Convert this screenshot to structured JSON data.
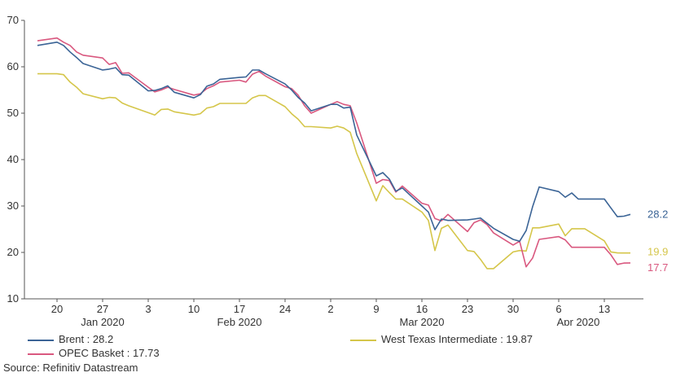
{
  "chart_data": {
    "type": "line",
    "title": "",
    "xlabel": "",
    "ylabel": "",
    "ylim": [
      10,
      70
    ],
    "yticks": [
      10,
      20,
      30,
      40,
      50,
      60,
      70
    ],
    "grid": false,
    "legend_position": "bottom",
    "x_day_ticks": [
      {
        "label": "20",
        "date": "2020-01-20"
      },
      {
        "label": "27",
        "date": "2020-01-27"
      },
      {
        "label": "3",
        "date": "2020-02-03"
      },
      {
        "label": "10",
        "date": "2020-02-10"
      },
      {
        "label": "17",
        "date": "2020-02-17"
      },
      {
        "label": "24",
        "date": "2020-02-24"
      },
      {
        "label": "2",
        "date": "2020-03-02"
      },
      {
        "label": "9",
        "date": "2020-03-09"
      },
      {
        "label": "16",
        "date": "2020-03-16"
      },
      {
        "label": "23",
        "date": "2020-03-23"
      },
      {
        "label": "30",
        "date": "2020-03-30"
      },
      {
        "label": "6",
        "date": "2020-04-06"
      },
      {
        "label": "13",
        "date": "2020-04-13"
      }
    ],
    "x_month_labels": [
      {
        "label": "Jan 2020",
        "date": "2020-01-27"
      },
      {
        "label": "Feb 2020",
        "date": "2020-02-17"
      },
      {
        "label": "Mar 2020",
        "date": "2020-03-16"
      },
      {
        "label": "Apr 2020",
        "date": "2020-04-09"
      }
    ],
    "series": [
      {
        "name": "Brent",
        "legend_label": "Brent : 28.2",
        "end_label": "28.2",
        "color": "#3b6496",
        "points": [
          [
            "2020-01-17",
            64.6
          ],
          [
            "2020-01-20",
            65.3
          ],
          [
            "2020-01-21",
            64.6
          ],
          [
            "2020-01-22",
            63.2
          ],
          [
            "2020-01-23",
            62.0
          ],
          [
            "2020-01-24",
            60.7
          ],
          [
            "2020-01-27",
            59.3
          ],
          [
            "2020-01-28",
            59.5
          ],
          [
            "2020-01-29",
            59.8
          ],
          [
            "2020-01-30",
            58.3
          ],
          [
            "2020-01-31",
            58.2
          ],
          [
            "2020-02-03",
            54.8
          ],
          [
            "2020-02-04",
            54.9
          ],
          [
            "2020-02-05",
            55.3
          ],
          [
            "2020-02-06",
            55.9
          ],
          [
            "2020-02-07",
            54.5
          ],
          [
            "2020-02-10",
            53.3
          ],
          [
            "2020-02-11",
            54.0
          ],
          [
            "2020-02-12",
            55.8
          ],
          [
            "2020-02-13",
            56.3
          ],
          [
            "2020-02-14",
            57.3
          ],
          [
            "2020-02-17",
            57.7
          ],
          [
            "2020-02-18",
            57.8
          ],
          [
            "2020-02-19",
            59.3
          ],
          [
            "2020-02-20",
            59.3
          ],
          [
            "2020-02-21",
            58.5
          ],
          [
            "2020-02-24",
            56.3
          ],
          [
            "2020-02-25",
            55.0
          ],
          [
            "2020-02-26",
            53.4
          ],
          [
            "2020-02-27",
            52.2
          ],
          [
            "2020-02-28",
            50.5
          ],
          [
            "2020-03-02",
            51.9
          ],
          [
            "2020-03-03",
            51.9
          ],
          [
            "2020-03-04",
            51.1
          ],
          [
            "2020-03-05",
            51.3
          ],
          [
            "2020-03-06",
            45.3
          ],
          [
            "2020-03-09",
            36.5
          ],
          [
            "2020-03-10",
            37.2
          ],
          [
            "2020-03-11",
            35.8
          ],
          [
            "2020-03-12",
            33.2
          ],
          [
            "2020-03-13",
            33.9
          ],
          [
            "2020-03-16",
            30.0
          ],
          [
            "2020-03-17",
            28.7
          ],
          [
            "2020-03-18",
            24.9
          ],
          [
            "2020-03-19",
            27.2
          ],
          [
            "2020-03-20",
            26.9
          ],
          [
            "2020-03-23",
            27.0
          ],
          [
            "2020-03-24",
            27.2
          ],
          [
            "2020-03-25",
            27.4
          ],
          [
            "2020-03-26",
            26.3
          ],
          [
            "2020-03-27",
            25.2
          ],
          [
            "2020-03-30",
            22.8
          ],
          [
            "2020-03-31",
            22.4
          ],
          [
            "2020-04-01",
            24.7
          ],
          [
            "2020-04-02",
            29.9
          ],
          [
            "2020-04-03",
            34.1
          ],
          [
            "2020-04-06",
            33.1
          ],
          [
            "2020-04-07",
            31.9
          ],
          [
            "2020-04-08",
            32.8
          ],
          [
            "2020-04-09",
            31.5
          ],
          [
            "2020-04-10",
            31.5
          ],
          [
            "2020-04-13",
            31.5
          ],
          [
            "2020-04-14",
            29.6
          ],
          [
            "2020-04-15",
            27.7
          ],
          [
            "2020-04-16",
            27.8
          ],
          [
            "2020-04-17",
            28.2
          ]
        ]
      },
      {
        "name": "OPEC Basket",
        "legend_label": "OPEC Basket : 17.73",
        "end_label": "17.7",
        "color": "#d9587f",
        "points": [
          [
            "2020-01-17",
            65.6
          ],
          [
            "2020-01-20",
            66.2
          ],
          [
            "2020-01-21",
            65.3
          ],
          [
            "2020-01-22",
            64.6
          ],
          [
            "2020-01-23",
            63.2
          ],
          [
            "2020-01-24",
            62.5
          ],
          [
            "2020-01-27",
            61.9
          ],
          [
            "2020-01-28",
            60.5
          ],
          [
            "2020-01-29",
            60.9
          ],
          [
            "2020-01-30",
            58.6
          ],
          [
            "2020-01-31",
            58.7
          ],
          [
            "2020-02-03",
            55.6
          ],
          [
            "2020-02-04",
            54.6
          ],
          [
            "2020-02-05",
            55.0
          ],
          [
            "2020-02-06",
            55.6
          ],
          [
            "2020-02-07",
            55.1
          ],
          [
            "2020-02-10",
            53.9
          ],
          [
            "2020-02-11",
            54.2
          ],
          [
            "2020-02-12",
            55.3
          ],
          [
            "2020-02-13",
            55.9
          ],
          [
            "2020-02-14",
            56.7
          ],
          [
            "2020-02-17",
            57.1
          ],
          [
            "2020-02-18",
            56.7
          ],
          [
            "2020-02-19",
            58.4
          ],
          [
            "2020-02-20",
            59.0
          ],
          [
            "2020-02-21",
            58.0
          ],
          [
            "2020-02-24",
            55.7
          ],
          [
            "2020-02-25",
            55.3
          ],
          [
            "2020-02-26",
            53.9
          ],
          [
            "2020-02-27",
            51.6
          ],
          [
            "2020-02-28",
            50.0
          ],
          [
            "2020-03-02",
            51.9
          ],
          [
            "2020-03-03",
            52.5
          ],
          [
            "2020-03-04",
            51.9
          ],
          [
            "2020-03-05",
            51.6
          ],
          [
            "2020-03-06",
            47.9
          ],
          [
            "2020-03-09",
            34.9
          ],
          [
            "2020-03-10",
            35.7
          ],
          [
            "2020-03-11",
            35.5
          ],
          [
            "2020-03-12",
            33.0
          ],
          [
            "2020-03-13",
            34.3
          ],
          [
            "2020-03-16",
            30.6
          ],
          [
            "2020-03-17",
            30.2
          ],
          [
            "2020-03-18",
            27.3
          ],
          [
            "2020-03-19",
            26.8
          ],
          [
            "2020-03-20",
            28.2
          ],
          [
            "2020-03-23",
            24.5
          ],
          [
            "2020-03-24",
            26.4
          ],
          [
            "2020-03-25",
            27.0
          ],
          [
            "2020-03-26",
            26.0
          ],
          [
            "2020-03-27",
            24.2
          ],
          [
            "2020-03-30",
            21.6
          ],
          [
            "2020-03-31",
            22.4
          ],
          [
            "2020-04-01",
            16.9
          ],
          [
            "2020-04-02",
            18.8
          ],
          [
            "2020-04-03",
            22.8
          ],
          [
            "2020-04-06",
            23.4
          ],
          [
            "2020-04-07",
            22.7
          ],
          [
            "2020-04-08",
            21.1
          ],
          [
            "2020-04-09",
            21.1
          ],
          [
            "2020-04-10",
            21.1
          ],
          [
            "2020-04-13",
            21.1
          ],
          [
            "2020-04-14",
            19.5
          ],
          [
            "2020-04-15",
            17.4
          ],
          [
            "2020-04-16",
            17.7
          ],
          [
            "2020-04-17",
            17.73
          ]
        ]
      },
      {
        "name": "West Texas Intermediate",
        "legend_label": "West Texas Intermediate : 19.87",
        "end_label": "19.9",
        "color": "#d5c64a",
        "points": [
          [
            "2020-01-17",
            58.5
          ],
          [
            "2020-01-20",
            58.5
          ],
          [
            "2020-01-21",
            58.3
          ],
          [
            "2020-01-22",
            56.7
          ],
          [
            "2020-01-23",
            55.6
          ],
          [
            "2020-01-24",
            54.2
          ],
          [
            "2020-01-27",
            53.1
          ],
          [
            "2020-01-28",
            53.4
          ],
          [
            "2020-01-29",
            53.3
          ],
          [
            "2020-01-30",
            52.2
          ],
          [
            "2020-01-31",
            51.6
          ],
          [
            "2020-02-03",
            50.1
          ],
          [
            "2020-02-04",
            49.6
          ],
          [
            "2020-02-05",
            50.8
          ],
          [
            "2020-02-06",
            50.9
          ],
          [
            "2020-02-07",
            50.3
          ],
          [
            "2020-02-10",
            49.6
          ],
          [
            "2020-02-11",
            49.9
          ],
          [
            "2020-02-12",
            51.1
          ],
          [
            "2020-02-13",
            51.4
          ],
          [
            "2020-02-14",
            52.1
          ],
          [
            "2020-02-17",
            52.1
          ],
          [
            "2020-02-18",
            52.1
          ],
          [
            "2020-02-19",
            53.3
          ],
          [
            "2020-02-20",
            53.8
          ],
          [
            "2020-02-21",
            53.8
          ],
          [
            "2020-02-24",
            51.4
          ],
          [
            "2020-02-25",
            49.9
          ],
          [
            "2020-02-26",
            48.7
          ],
          [
            "2020-02-27",
            47.1
          ],
          [
            "2020-02-28",
            47.1
          ],
          [
            "2020-03-02",
            46.8
          ],
          [
            "2020-03-03",
            47.2
          ],
          [
            "2020-03-04",
            46.8
          ],
          [
            "2020-03-05",
            45.9
          ],
          [
            "2020-03-06",
            41.3
          ],
          [
            "2020-03-09",
            31.1
          ],
          [
            "2020-03-10",
            34.4
          ],
          [
            "2020-03-11",
            32.9
          ],
          [
            "2020-03-12",
            31.5
          ],
          [
            "2020-03-13",
            31.5
          ],
          [
            "2020-03-16",
            28.7
          ],
          [
            "2020-03-17",
            26.9
          ],
          [
            "2020-03-18",
            20.4
          ],
          [
            "2020-03-19",
            25.2
          ],
          [
            "2020-03-20",
            25.9
          ],
          [
            "2020-03-23",
            20.4
          ],
          [
            "2020-03-24",
            20.2
          ],
          [
            "2020-03-25",
            18.5
          ],
          [
            "2020-03-26",
            16.5
          ],
          [
            "2020-03-27",
            16.5
          ],
          [
            "2020-03-30",
            20.1
          ],
          [
            "2020-03-31",
            20.4
          ],
          [
            "2020-04-01",
            20.3
          ],
          [
            "2020-04-02",
            25.3
          ],
          [
            "2020-04-03",
            25.3
          ],
          [
            "2020-04-06",
            26.1
          ],
          [
            "2020-04-07",
            23.6
          ],
          [
            "2020-04-08",
            25.1
          ],
          [
            "2020-04-09",
            25.1
          ],
          [
            "2020-04-10",
            25.1
          ],
          [
            "2020-04-13",
            22.5
          ],
          [
            "2020-04-14",
            20.1
          ],
          [
            "2020-04-15",
            19.9
          ],
          [
            "2020-04-16",
            19.87
          ],
          [
            "2020-04-17",
            19.87
          ]
        ]
      }
    ]
  },
  "legend": {
    "brent": "Brent : 28.2",
    "opec": "OPEC Basket : 17.73",
    "wti": "West Texas Intermediate : 19.87"
  },
  "source": "Source: Refinitiv Datastream"
}
